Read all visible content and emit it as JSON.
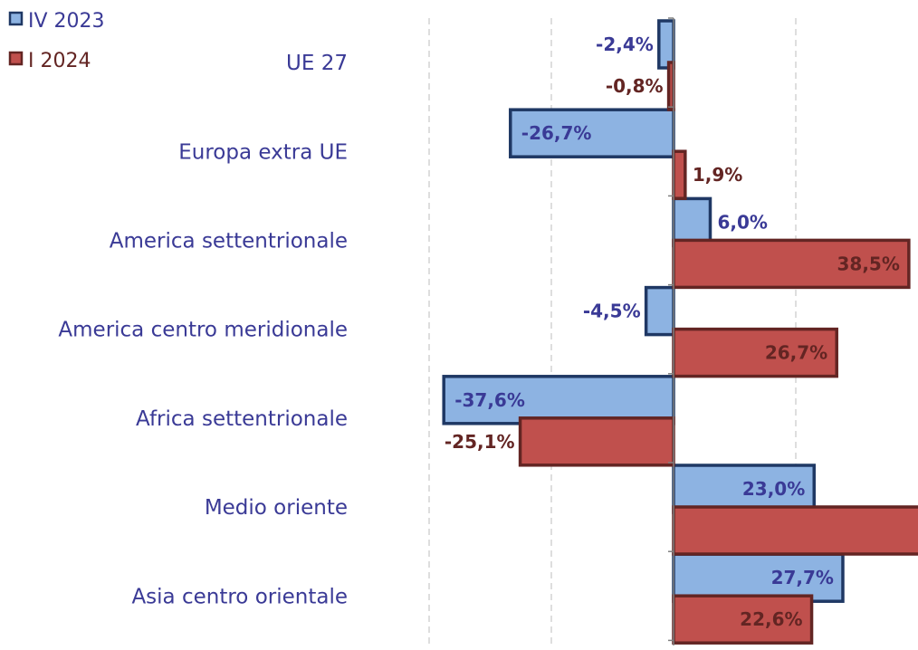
{
  "chart_data": {
    "type": "bar",
    "orientation": "horizontal",
    "categories": [
      "UE 27",
      "Europa extra UE",
      "America settentrionale",
      "America centro meridionale",
      "Africa settentrionale",
      "Medio oriente",
      "Asia centro orientale"
    ],
    "series": [
      {
        "name": "IV 2023",
        "values": [
          -2.4,
          -26.7,
          6.0,
          -4.5,
          -37.6,
          23.0,
          27.7
        ],
        "labels": [
          "-2,4%",
          "-26,7%",
          "6,0%",
          "-4,5%",
          "-37,6%",
          "23,0%",
          "27,7%"
        ],
        "fill": "#8db3e2",
        "stroke": "#1f3864",
        "label_color": "#3a3a96"
      },
      {
        "name": "I 2024",
        "values": [
          -0.8,
          1.9,
          38.5,
          26.7,
          -25.1,
          40.5,
          22.6
        ],
        "labels": [
          "-0,8%",
          "1,9%",
          "38,5%",
          "26,7%",
          "-25,1%",
          "",
          "22,6%"
        ],
        "fill": "#c0504d",
        "stroke": "#632523",
        "label_color": "#632523"
      }
    ],
    "xlim": [
      -50,
      40
    ],
    "grid": true,
    "grid_style": "dashed vertical",
    "legend": "top-left",
    "title": "",
    "xlabel": "",
    "ylabel": ""
  }
}
